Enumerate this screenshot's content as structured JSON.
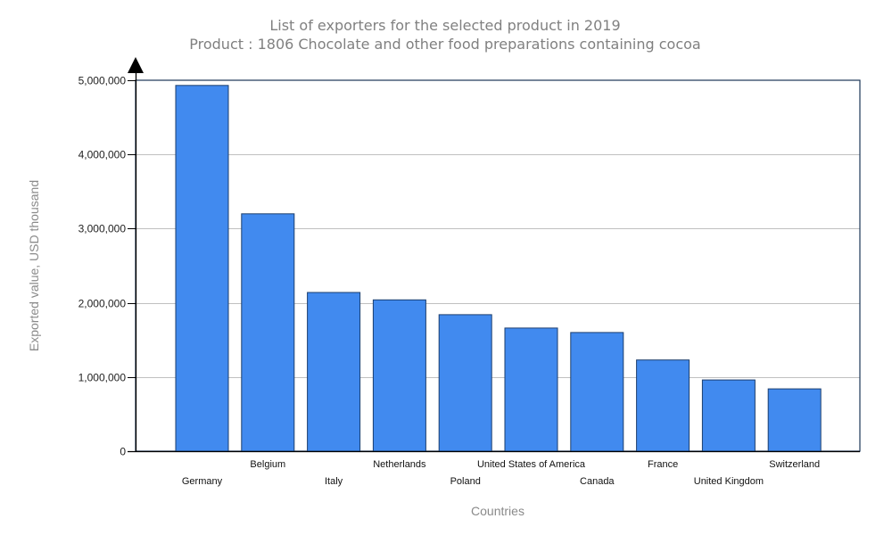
{
  "chart_data": {
    "type": "bar",
    "title": "List of exporters for the selected product in 2019",
    "subtitle": "Product : 1806 Chocolate and other food preparations containing cocoa",
    "xlabel": "Countries",
    "ylabel": "Exported value, USD thousand",
    "ylim": [
      0,
      5000000
    ],
    "yticks": [
      0,
      1000000,
      2000000,
      3000000,
      4000000,
      5000000
    ],
    "ytick_labels": [
      "0",
      "1,000,000",
      "2,000,000",
      "3,000,000",
      "4,000,000",
      "5,000,000"
    ],
    "grid": true,
    "legend": "none",
    "categories": [
      "Germany",
      "Belgium",
      "Italy",
      "Netherlands",
      "Poland",
      "United States of America",
      "Canada",
      "France",
      "United Kingdom",
      "Switzerland"
    ],
    "values": [
      4930000,
      3200000,
      2140000,
      2040000,
      1840000,
      1660000,
      1600000,
      1230000,
      960000,
      840000
    ],
    "colors": {
      "bar_fill": "#418AEF",
      "bar_stroke": "#1B3E6E",
      "grid": "#C0C0C0",
      "frame": "#1B3556",
      "axis": "#000000",
      "title": "#808080"
    }
  }
}
